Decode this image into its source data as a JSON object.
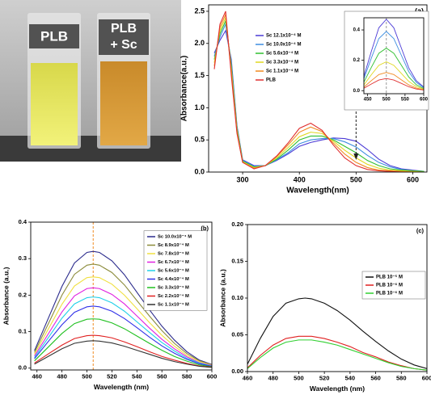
{
  "photo": {
    "left_label": "PLB",
    "right_label": [
      "PLB",
      "+ Sc"
    ]
  },
  "chart_data": [
    {
      "type": "line",
      "annotation": "(a)",
      "xlabel": "Wavelength(nm)",
      "ylabel": "Absorbance(a.u.)",
      "x": [
        250,
        260,
        270,
        280,
        290,
        300,
        320,
        340,
        360,
        380,
        400,
        420,
        440,
        460,
        480,
        500,
        520,
        540,
        560,
        580,
        600,
        620
      ],
      "xlim": [
        240,
        625
      ],
      "xticks": [
        300,
        400,
        500,
        600
      ],
      "ylim": [
        0,
        2.6
      ],
      "yticks": [
        {
          "value": 0,
          "label": "0.0"
        },
        0.5,
        {
          "value": 1,
          "label": "1.0"
        },
        1.5,
        {
          "value": 2,
          "label": "2.0"
        },
        2.5
      ],
      "series": [
        {
          "name": "Sc 12.1x10⁻⁴ M",
          "color": "#4b3bd6",
          "values": [
            1.85,
            2.05,
            2.2,
            1.75,
            0.72,
            0.19,
            0.1,
            0.1,
            0.18,
            0.28,
            0.4,
            0.46,
            0.5,
            0.53,
            0.52,
            0.48,
            0.35,
            0.2,
            0.1,
            0.05,
            0.03,
            0.01
          ]
        },
        {
          "name": "Sc 10.0x10⁻⁴ M",
          "color": "#3d8ee0",
          "values": [
            1.8,
            2.1,
            2.3,
            1.7,
            0.7,
            0.18,
            0.09,
            0.1,
            0.19,
            0.3,
            0.44,
            0.5,
            0.52,
            0.52,
            0.47,
            0.39,
            0.26,
            0.15,
            0.08,
            0.04,
            0.02,
            0.01
          ]
        },
        {
          "name": "Sc 5.6x10⁻⁴ M",
          "color": "#30c030",
          "values": [
            1.75,
            2.15,
            2.35,
            1.65,
            0.68,
            0.17,
            0.08,
            0.1,
            0.2,
            0.34,
            0.5,
            0.56,
            0.56,
            0.5,
            0.4,
            0.3,
            0.18,
            0.1,
            0.05,
            0.03,
            0.02,
            0.01
          ]
        },
        {
          "name": "Sc 3.3x10⁻⁴ M",
          "color": "#e0d820",
          "values": [
            1.7,
            2.2,
            2.4,
            1.6,
            0.65,
            0.16,
            0.07,
            0.1,
            0.22,
            0.38,
            0.55,
            0.62,
            0.6,
            0.48,
            0.34,
            0.22,
            0.12,
            0.06,
            0.03,
            0.02,
            0.01,
            0
          ]
        },
        {
          "name": "Sc 1.1x10⁻⁴ M",
          "color": "#f08a20",
          "values": [
            1.65,
            2.25,
            2.45,
            1.55,
            0.62,
            0.15,
            0.06,
            0.1,
            0.24,
            0.42,
            0.62,
            0.7,
            0.63,
            0.45,
            0.28,
            0.15,
            0.07,
            0.03,
            0.02,
            0.01,
            0,
            0
          ]
        },
        {
          "name": "PLB",
          "color": "#e03030",
          "values": [
            1.6,
            2.3,
            2.5,
            1.5,
            0.6,
            0.15,
            0.05,
            0.1,
            0.25,
            0.45,
            0.68,
            0.76,
            0.65,
            0.42,
            0.22,
            0.1,
            0.04,
            0.02,
            0.01,
            0,
            0,
            0
          ]
        }
      ]
    },
    {
      "type": "line",
      "x": [
        440,
        460,
        480,
        500,
        520,
        540,
        560,
        580,
        600
      ],
      "xlim": [
        440,
        600
      ],
      "xticks": [
        450,
        500,
        550,
        600
      ],
      "ylim": [
        -0.02,
        0.48
      ],
      "yticks": [
        {
          "value": 0,
          "label": "0.0"
        },
        0.2,
        0.4
      ],
      "series": [
        {
          "color": "#4b3bd6",
          "values": [
            0.094,
            0.259,
            0.414,
            0.47,
            0.414,
            0.282,
            0.15,
            0.066,
            0.024
          ]
        },
        {
          "color": "#3d8ee0",
          "values": [
            0.078,
            0.215,
            0.343,
            0.39,
            0.343,
            0.234,
            0.125,
            0.055,
            0.02
          ]
        },
        {
          "color": "#30c030",
          "values": [
            0.056,
            0.154,
            0.246,
            0.28,
            0.246,
            0.168,
            0.09,
            0.039,
            0.014
          ]
        },
        {
          "color": "#e0d820",
          "values": [
            0.038,
            0.105,
            0.167,
            0.19,
            0.167,
            0.114,
            0.061,
            0.027,
            0.01
          ]
        },
        {
          "color": "#f08a20",
          "values": [
            0.024,
            0.066,
            0.106,
            0.12,
            0.106,
            0.072,
            0.038,
            0.017,
            0.006
          ]
        },
        {
          "color": "#e03030",
          "values": [
            0.016,
            0.044,
            0.07,
            0.08,
            0.07,
            0.048,
            0.026,
            0.011,
            0.004
          ]
        }
      ]
    },
    {
      "type": "line",
      "annotation": "(b)",
      "xlabel": "Wavelength (nm)",
      "ylabel": "Absorbance (a.u.)",
      "x": [
        458,
        470,
        480,
        490,
        500,
        505,
        510,
        520,
        530,
        540,
        550,
        560,
        570,
        580,
        590,
        600
      ],
      "xlim": [
        455,
        600
      ],
      "xticks": [
        460,
        480,
        500,
        520,
        540,
        560,
        580,
        600
      ],
      "ylim": [
        -0.005,
        0.4
      ],
      "yticks": [
        {
          "value": 0,
          "label": "0.0"
        },
        0.1,
        0.2,
        0.3,
        0.4
      ],
      "series": [
        {
          "name": "Sc 10.0x10⁻⁴ M",
          "color": "#2b2b8c",
          "values": [
            0.048,
            0.144,
            0.224,
            0.288,
            0.317,
            0.32,
            0.317,
            0.294,
            0.256,
            0.208,
            0.16,
            0.115,
            0.077,
            0.045,
            0.022,
            0.01
          ]
        },
        {
          "name": "Sc 8.9x10⁻⁴ M",
          "color": "#8b8b3a",
          "values": [
            0.043,
            0.128,
            0.2,
            0.257,
            0.282,
            0.285,
            0.282,
            0.262,
            0.228,
            0.185,
            0.143,
            0.103,
            0.068,
            0.04,
            0.02,
            0.009
          ]
        },
        {
          "name": "Sc 7.8x10⁻⁴ M",
          "color": "#f0e040",
          "values": [
            0.038,
            0.113,
            0.175,
            0.225,
            0.248,
            0.25,
            0.248,
            0.23,
            0.2,
            0.163,
            0.125,
            0.09,
            0.06,
            0.035,
            0.018,
            0.008
          ]
        },
        {
          "name": "Sc 6.7x10⁻⁴ M",
          "color": "#e020e0",
          "values": [
            0.033,
            0.099,
            0.154,
            0.198,
            0.218,
            0.22,
            0.218,
            0.202,
            0.176,
            0.143,
            0.11,
            0.079,
            0.053,
            0.031,
            0.015,
            0.007
          ]
        },
        {
          "name": "Sc 5.6x10⁻⁴ M",
          "color": "#20d0e8",
          "values": [
            0.029,
            0.088,
            0.137,
            0.176,
            0.193,
            0.195,
            0.193,
            0.179,
            0.156,
            0.127,
            0.098,
            0.07,
            0.047,
            0.027,
            0.014,
            0.006
          ]
        },
        {
          "name": "Sc 4.4x10⁻⁴ M",
          "color": "#3030e8",
          "values": [
            0.026,
            0.077,
            0.119,
            0.153,
            0.168,
            0.17,
            0.168,
            0.156,
            0.136,
            0.111,
            0.085,
            0.061,
            0.041,
            0.024,
            0.012,
            0.005
          ]
        },
        {
          "name": "Sc 3.3x10⁻⁴ M",
          "color": "#20c020",
          "values": [
            0.02,
            0.061,
            0.095,
            0.122,
            0.134,
            0.135,
            0.134,
            0.124,
            0.108,
            0.088,
            0.068,
            0.049,
            0.032,
            0.019,
            0.009,
            0.004
          ]
        },
        {
          "name": "Sc 2.2x10⁻⁴ M",
          "color": "#e02020",
          "values": [
            0.014,
            0.041,
            0.063,
            0.081,
            0.089,
            0.09,
            0.089,
            0.083,
            0.072,
            0.059,
            0.045,
            0.032,
            0.022,
            0.013,
            0.006,
            0.003
          ]
        },
        {
          "name": "Sc 1.1x10⁻⁴ M",
          "color": "#333333",
          "values": [
            0.011,
            0.034,
            0.053,
            0.068,
            0.074,
            0.075,
            0.074,
            0.069,
            0.06,
            0.049,
            0.038,
            0.027,
            0.018,
            0.011,
            0.005,
            0.002
          ]
        }
      ]
    },
    {
      "type": "line",
      "annotation": "(c)",
      "xlabel": "Wavelength (nm)",
      "ylabel": "Absorbance (a.u.)",
      "x": [
        460,
        470,
        480,
        490,
        500,
        505,
        510,
        520,
        530,
        540,
        550,
        560,
        570,
        580,
        590,
        600
      ],
      "xlim": [
        460,
        600
      ],
      "xticks": [
        460,
        480,
        500,
        520,
        540,
        560,
        580,
        600
      ],
      "ylim": [
        0,
        0.2
      ],
      "yticks": [
        {
          "value": 0,
          "label": "0.00"
        },
        {
          "value": 0.05,
          "label": "0.05"
        },
        {
          "value": 0.1,
          "label": "0.10"
        },
        {
          "value": 0.15,
          "label": "0.15"
        },
        {
          "value": 0.2,
          "label": "0.20"
        }
      ],
      "series": [
        {
          "name": "PLB 10⁻⁵ M",
          "color": "#111111",
          "values": [
            0.01,
            0.045,
            0.075,
            0.093,
            0.099,
            0.1,
            0.099,
            0.093,
            0.083,
            0.07,
            0.055,
            0.041,
            0.028,
            0.017,
            0.009,
            0.004
          ]
        },
        {
          "name": "PLB 10⁻⁶ M",
          "color": "#e02020",
          "values": [
            0.005,
            0.022,
            0.036,
            0.045,
            0.048,
            0.048,
            0.048,
            0.045,
            0.04,
            0.034,
            0.026,
            0.02,
            0.013,
            0.008,
            0.004,
            0.002
          ]
        },
        {
          "name": "PLB 10⁻⁶ M",
          "color": "#30d030",
          "values": [
            0.004,
            0.019,
            0.032,
            0.04,
            0.043,
            0.043,
            0.043,
            0.04,
            0.036,
            0.03,
            0.024,
            0.018,
            0.012,
            0.007,
            0.004,
            0.002
          ]
        }
      ]
    }
  ]
}
